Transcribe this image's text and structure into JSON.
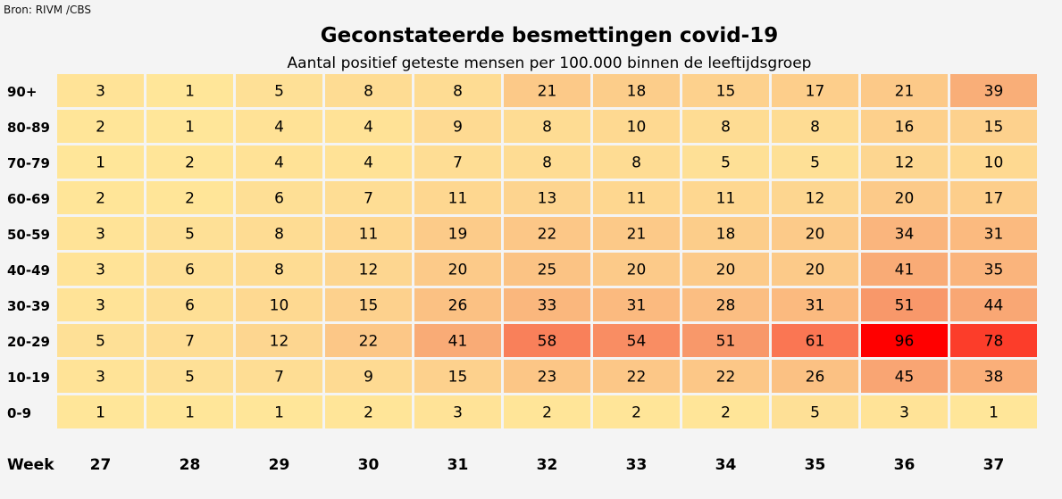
{
  "source": "Bron: RIVM /CBS",
  "chart_data": {
    "type": "heatmap",
    "title": "Geconstateerde besmettingen covid-19",
    "subtitle": "Aantal positief geteste mensen per 100.000 binnen de leeftijdsgroep",
    "xlabel": "Week",
    "x": [
      "27",
      "28",
      "29",
      "30",
      "31",
      "32",
      "33",
      "34",
      "35",
      "36",
      "37"
    ],
    "y": [
      "90+",
      "80-89",
      "70-79",
      "60-69",
      "50-59",
      "40-49",
      "30-39",
      "20-29",
      "10-19",
      "0-9"
    ],
    "values": [
      [
        3,
        1,
        5,
        8,
        8,
        21,
        18,
        15,
        17,
        21,
        39
      ],
      [
        2,
        1,
        4,
        4,
        9,
        8,
        10,
        8,
        8,
        16,
        15
      ],
      [
        1,
        2,
        4,
        4,
        7,
        8,
        8,
        5,
        5,
        12,
        10
      ],
      [
        2,
        2,
        6,
        7,
        11,
        13,
        11,
        11,
        12,
        20,
        17
      ],
      [
        3,
        5,
        8,
        11,
        19,
        22,
        21,
        18,
        20,
        34,
        31
      ],
      [
        3,
        6,
        8,
        12,
        20,
        25,
        20,
        20,
        20,
        41,
        35
      ],
      [
        3,
        6,
        10,
        15,
        26,
        33,
        31,
        28,
        31,
        51,
        44
      ],
      [
        5,
        7,
        12,
        22,
        41,
        58,
        54,
        51,
        61,
        96,
        78
      ],
      [
        3,
        5,
        7,
        9,
        15,
        23,
        22,
        22,
        26,
        45,
        38
      ],
      [
        1,
        1,
        1,
        2,
        3,
        2,
        2,
        2,
        5,
        3,
        1
      ]
    ],
    "color_scale": {
      "low": "#ffe699",
      "mid": "#f8a070",
      "high": "#ff0000"
    }
  }
}
